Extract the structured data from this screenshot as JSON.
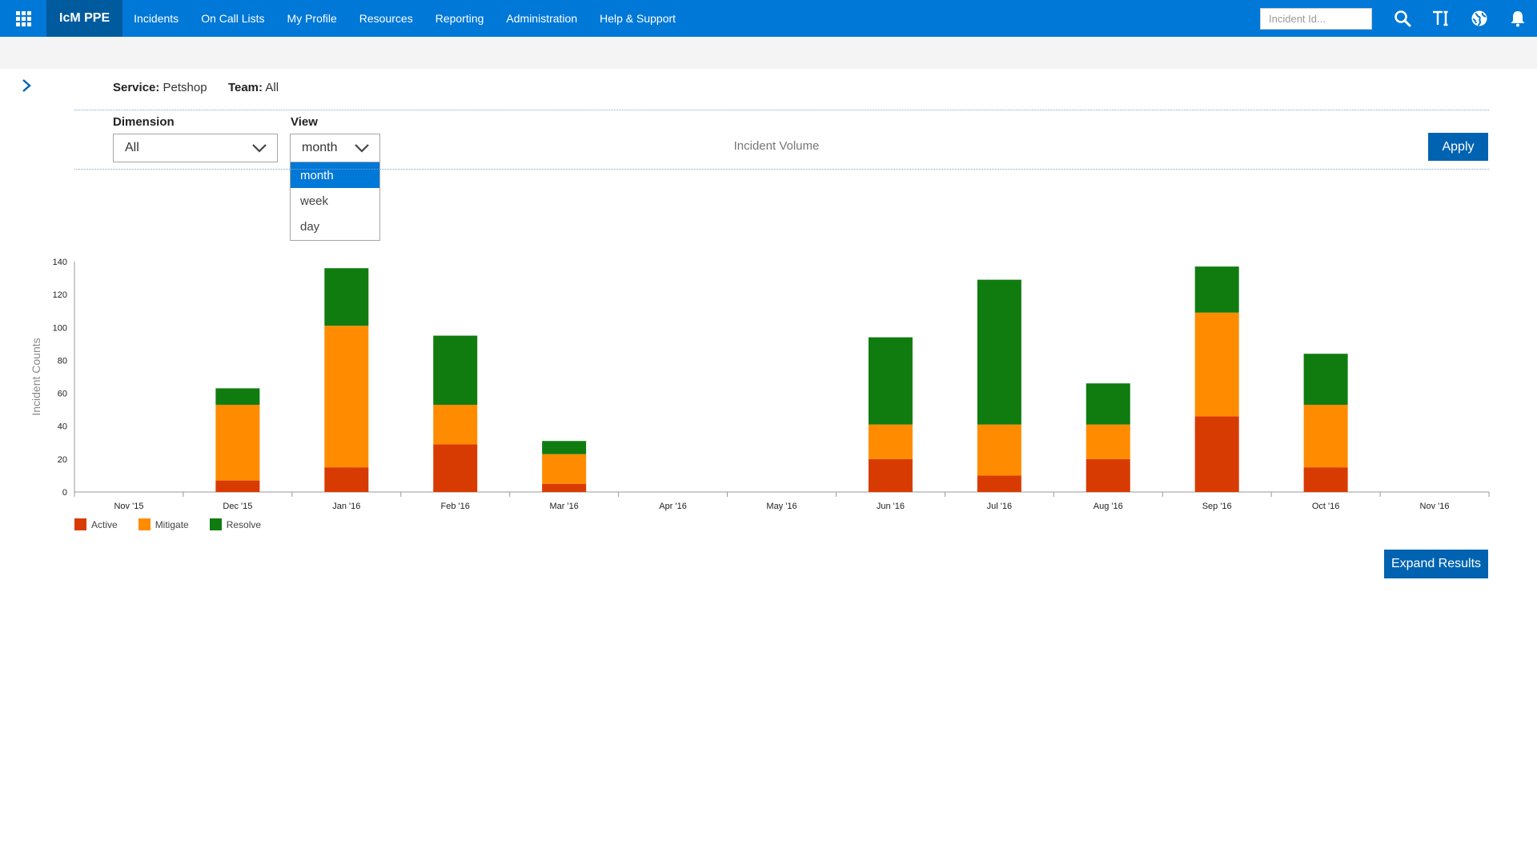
{
  "nav": {
    "brand": "IcM PPE",
    "items": [
      "Incidents",
      "On Call Lists",
      "My Profile",
      "Resources",
      "Reporting",
      "Administration",
      "Help & Support"
    ],
    "search_placeholder": "Incident Id...",
    "icons": [
      "search-icon",
      "text-icon",
      "globe-icon",
      "bell-icon"
    ]
  },
  "context": {
    "service_label": "Service:",
    "service_value": "Petshop",
    "team_label": "Team:",
    "team_value": "All"
  },
  "filters": {
    "dimension_label": "Dimension",
    "dimension_value": "All",
    "view_label": "View",
    "view_value": "month",
    "view_options": [
      "month",
      "week",
      "day"
    ],
    "view_selected_index": 0
  },
  "chart_title": "Incident Volume",
  "apply_label": "Apply",
  "expand_label": "Expand Results",
  "colors": {
    "nav_bg": "#0078d7",
    "brand_bg": "#005a9e",
    "button_bg": "#0063b1",
    "active": "#d83b01",
    "mitigate": "#ff8c00",
    "resolve": "#107c10"
  },
  "chart_data": {
    "type": "bar",
    "stacked": true,
    "title": "",
    "xlabel": "",
    "ylabel": "Incident Counts",
    "ylim": [
      0,
      140
    ],
    "yticks": [
      0,
      20,
      40,
      60,
      80,
      100,
      120,
      140
    ],
    "categories": [
      "Nov '15",
      "Dec '15",
      "Jan '16",
      "Feb '16",
      "Mar '16",
      "Apr '16",
      "May '16",
      "Jun '16",
      "Jul '16",
      "Aug '16",
      "Sep '16",
      "Oct '16",
      "Nov '16"
    ],
    "series": [
      {
        "name": "Active",
        "color": "#d83b01",
        "values": [
          0,
          7,
          15,
          29,
          5,
          0,
          0,
          20,
          10,
          20,
          46,
          15,
          0
        ]
      },
      {
        "name": "Mitigate",
        "color": "#ff8c00",
        "values": [
          0,
          46,
          86,
          24,
          18,
          0,
          0,
          21,
          31,
          21,
          63,
          38,
          0
        ]
      },
      {
        "name": "Resolve",
        "color": "#107c10",
        "values": [
          0,
          10,
          35,
          42,
          8,
          0,
          0,
          53,
          88,
          25,
          28,
          31,
          0
        ]
      }
    ],
    "legend_position": "bottom-left",
    "grid": false
  }
}
